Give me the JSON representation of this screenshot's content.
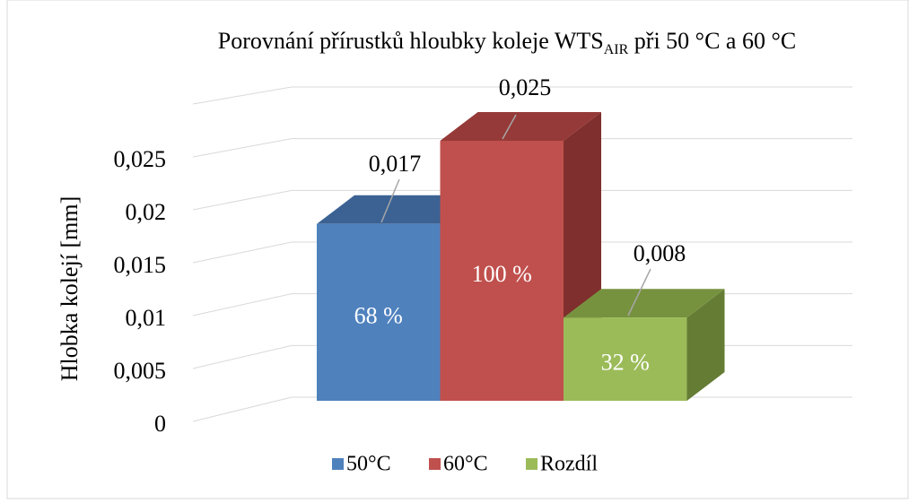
{
  "chart_data": {
    "type": "bar3d",
    "title": {
      "main": "Porovnání přírustků hloubky koleje WTS",
      "subscript": "AIR",
      "rest": " při 50 °C a 60 °C"
    },
    "y_label": "Hlobka kolejí [mm]",
    "ylim": [
      0,
      0.03
    ],
    "yticks": [
      0,
      {
        "value": 0.005,
        "label": "0,005"
      },
      {
        "value": 0.01,
        "label": "0,01"
      },
      {
        "value": 0.015,
        "label": "0,015"
      },
      {
        "value": 0.02,
        "label": "0,02"
      },
      {
        "value": 0.025,
        "label": "0,025"
      }
    ],
    "gridlines": [
      0,
      0.005,
      0.01,
      0.015,
      0.02,
      0.025,
      0.03
    ],
    "grid": true,
    "legend": "bottom",
    "series": [
      {
        "name": "50°C",
        "color": "#4f81bd",
        "top_color": "#3b6293",
        "side_color": "#345a89",
        "values": [
          0.017
        ],
        "value_labels": [
          "0,017"
        ],
        "percentages": [
          68
        ],
        "percentage_labels": [
          "68 %"
        ]
      },
      {
        "name": "60°C",
        "color": "#c0504d",
        "top_color": "#953a38",
        "side_color": "#7f2f2d",
        "values": [
          0.025
        ],
        "value_labels": [
          "0,025"
        ],
        "percentages": [
          100
        ],
        "percentage_labels": [
          "100 %"
        ]
      },
      {
        "name": "Rozdíl",
        "color": "#9bbb59",
        "top_color": "#77923f",
        "side_color": "#647c34",
        "values": [
          0.008
        ],
        "value_labels": [
          "0,008"
        ],
        "percentages": [
          32
        ],
        "percentage_labels": [
          "32 %"
        ]
      }
    ]
  }
}
